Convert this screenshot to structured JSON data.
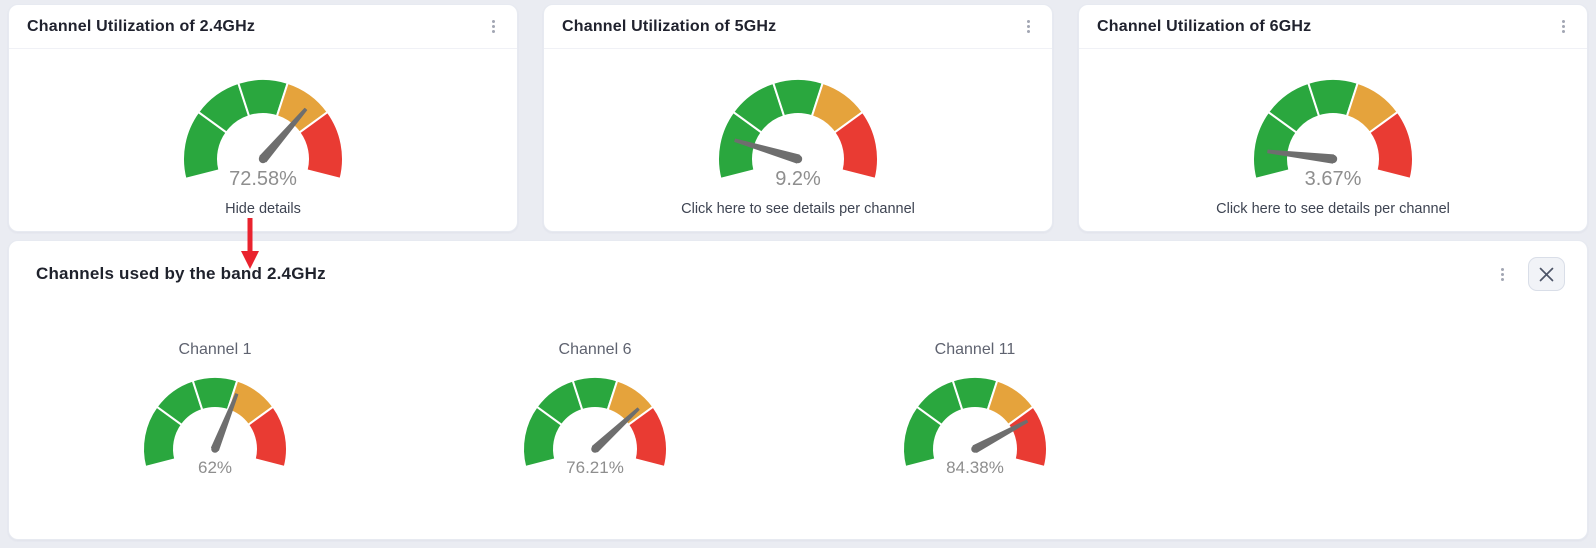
{
  "colors": {
    "page_bg": "#eaecf2",
    "card_bg": "#ffffff",
    "green": "#2aa73e",
    "orange": "#e5a33c",
    "red": "#e93b33",
    "needle": "#6e6e6e",
    "value_text": "#8e8e8e",
    "title_text": "#20222e",
    "link_text": "#3e4452",
    "annotation_red": "#e9232e"
  },
  "gauge": {
    "min": 0,
    "max": 100,
    "start_angle_deg": 180,
    "end_angle_deg": 0,
    "bands": [
      {
        "from": -8,
        "to": 20,
        "color": "#2aa73e"
      },
      {
        "from": 20,
        "to": 40,
        "color": "#2aa73e"
      },
      {
        "from": 40,
        "to": 60,
        "color": "#2aa73e"
      },
      {
        "from": 60,
        "to": 80,
        "color": "#e5a33c"
      },
      {
        "from": 80,
        "to": 108,
        "color": "#e93b33"
      }
    ],
    "needle_color": "#6e6e6e",
    "value_color": "#8e8e8e"
  },
  "top_cards": [
    {
      "title": "Channel Utilization of 2.4GHz",
      "value": 72.58,
      "value_label": "72.58%",
      "link_label": "Hide details",
      "menu_icon": "kebab-menu"
    },
    {
      "title": "Channel Utilization of 5GHz",
      "value": 9.2,
      "value_label": "9.2%",
      "link_label": "Click here to see details per channel",
      "menu_icon": "kebab-menu"
    },
    {
      "title": "Channel Utilization of 6GHz",
      "value": 3.67,
      "value_label": "3.67%",
      "link_label": "Click here to see details per channel",
      "menu_icon": "kebab-menu"
    }
  ],
  "details_panel": {
    "title": "Channels used by the band 2.4GHz",
    "menu_icon": "kebab-menu",
    "close_icon": "x-close",
    "channels": [
      {
        "label": "Channel 1",
        "value": 62,
        "value_label": "62%"
      },
      {
        "label": "Channel 6",
        "value": 76.21,
        "value_label": "76.21%"
      },
      {
        "label": "Channel 11",
        "value": 84.38,
        "value_label": "84.38%"
      }
    ]
  },
  "annotation": {
    "type": "red-arrow-down",
    "color": "#e9232e"
  },
  "chart_data": [
    {
      "type": "gauge",
      "title": "Channel Utilization of 2.4GHz",
      "value": 72.58,
      "unit": "%",
      "min": 0,
      "max": 100,
      "bands": [
        {
          "range": [
            0,
            60
          ],
          "color": "green"
        },
        {
          "range": [
            60,
            80
          ],
          "color": "orange"
        },
        {
          "range": [
            80,
            100
          ],
          "color": "red"
        }
      ]
    },
    {
      "type": "gauge",
      "title": "Channel Utilization of 5GHz",
      "value": 9.2,
      "unit": "%",
      "min": 0,
      "max": 100,
      "bands": [
        {
          "range": [
            0,
            60
          ],
          "color": "green"
        },
        {
          "range": [
            60,
            80
          ],
          "color": "orange"
        },
        {
          "range": [
            80,
            100
          ],
          "color": "red"
        }
      ]
    },
    {
      "type": "gauge",
      "title": "Channel Utilization of 6GHz",
      "value": 3.67,
      "unit": "%",
      "min": 0,
      "max": 100,
      "bands": [
        {
          "range": [
            0,
            60
          ],
          "color": "green"
        },
        {
          "range": [
            60,
            80
          ],
          "color": "orange"
        },
        {
          "range": [
            80,
            100
          ],
          "color": "red"
        }
      ]
    },
    {
      "type": "gauge",
      "title": "Channel 1",
      "value": 62,
      "unit": "%",
      "min": 0,
      "max": 100,
      "bands": [
        {
          "range": [
            0,
            60
          ],
          "color": "green"
        },
        {
          "range": [
            60,
            80
          ],
          "color": "orange"
        },
        {
          "range": [
            80,
            100
          ],
          "color": "red"
        }
      ]
    },
    {
      "type": "gauge",
      "title": "Channel 6",
      "value": 76.21,
      "unit": "%",
      "min": 0,
      "max": 100,
      "bands": [
        {
          "range": [
            0,
            60
          ],
          "color": "green"
        },
        {
          "range": [
            60,
            80
          ],
          "color": "orange"
        },
        {
          "range": [
            80,
            100
          ],
          "color": "red"
        }
      ]
    },
    {
      "type": "gauge",
      "title": "Channel 11",
      "value": 84.38,
      "unit": "%",
      "min": 0,
      "max": 100,
      "bands": [
        {
          "range": [
            0,
            60
          ],
          "color": "green"
        },
        {
          "range": [
            60,
            80
          ],
          "color": "orange"
        },
        {
          "range": [
            80,
            100
          ],
          "color": "red"
        }
      ]
    }
  ]
}
